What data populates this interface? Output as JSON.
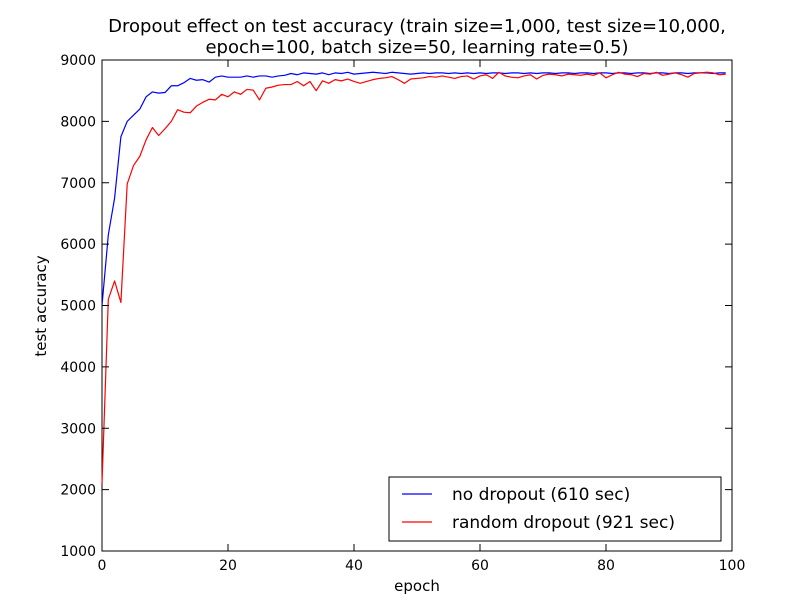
{
  "chart_data": {
    "type": "line",
    "title": "Dropout effect on test accuracy (train size=1,000, test size=10,000,",
    "subtitle": "epoch=100, batch size=50, learning rate=0.5)",
    "xlabel": "epoch",
    "ylabel": "test accuracy",
    "xlim": [
      0,
      100
    ],
    "ylim": [
      1000,
      9000
    ],
    "xticks": [
      0,
      20,
      40,
      60,
      80,
      100
    ],
    "yticks": [
      1000,
      2000,
      3000,
      4000,
      5000,
      6000,
      7000,
      8000,
      9000
    ],
    "grid": false,
    "legend_position": "bottom-right",
    "series": [
      {
        "name": "no dropout (610 sec)",
        "color": "#0000ff",
        "x": [
          0,
          1,
          2,
          3,
          4,
          5,
          6,
          7,
          8,
          9,
          10,
          11,
          12,
          13,
          14,
          15,
          16,
          17,
          18,
          19,
          20,
          21,
          22,
          23,
          24,
          25,
          26,
          27,
          28,
          29,
          30,
          31,
          32,
          33,
          34,
          35,
          36,
          37,
          38,
          39,
          40,
          41,
          42,
          43,
          44,
          45,
          46,
          47,
          48,
          49,
          50,
          51,
          52,
          53,
          54,
          55,
          56,
          57,
          58,
          59,
          60,
          61,
          62,
          63,
          64,
          65,
          66,
          67,
          68,
          69,
          70,
          71,
          72,
          73,
          74,
          75,
          76,
          77,
          78,
          79,
          80,
          81,
          82,
          83,
          84,
          85,
          86,
          87,
          88,
          89,
          90,
          91,
          92,
          93,
          94,
          95,
          96,
          97,
          98,
          99
        ],
        "y": [
          5000,
          6150,
          6750,
          7750,
          8000,
          8100,
          8200,
          8400,
          8480,
          8460,
          8470,
          8580,
          8580,
          8630,
          8700,
          8670,
          8680,
          8640,
          8720,
          8740,
          8720,
          8720,
          8720,
          8740,
          8720,
          8740,
          8740,
          8720,
          8740,
          8750,
          8780,
          8760,
          8790,
          8780,
          8770,
          8790,
          8760,
          8790,
          8780,
          8800,
          8770,
          8780,
          8790,
          8800,
          8790,
          8780,
          8800,
          8790,
          8780,
          8770,
          8780,
          8790,
          8780,
          8790,
          8790,
          8780,
          8790,
          8780,
          8790,
          8780,
          8790,
          8780,
          8790,
          8790,
          8780,
          8790,
          8790,
          8780,
          8790,
          8780,
          8790,
          8790,
          8780,
          8790,
          8790,
          8780,
          8790,
          8790,
          8780,
          8790,
          8790,
          8780,
          8790,
          8790,
          8780,
          8790,
          8790,
          8780,
          8790,
          8790,
          8780,
          8790,
          8790,
          8780,
          8790,
          8790,
          8790,
          8780,
          8790,
          8790
        ]
      },
      {
        "name": "random dropout (921 sec)",
        "color": "#ff0000",
        "x": [
          0,
          1,
          2,
          3,
          4,
          5,
          6,
          7,
          8,
          9,
          10,
          11,
          12,
          13,
          14,
          15,
          16,
          17,
          18,
          19,
          20,
          21,
          22,
          23,
          24,
          25,
          26,
          27,
          28,
          29,
          30,
          31,
          32,
          33,
          34,
          35,
          36,
          37,
          38,
          39,
          40,
          41,
          42,
          43,
          44,
          45,
          46,
          47,
          48,
          49,
          50,
          51,
          52,
          53,
          54,
          55,
          56,
          57,
          58,
          59,
          60,
          61,
          62,
          63,
          64,
          65,
          66,
          67,
          68,
          69,
          70,
          71,
          72,
          73,
          74,
          75,
          76,
          77,
          78,
          79,
          80,
          81,
          82,
          83,
          84,
          85,
          86,
          87,
          88,
          89,
          90,
          91,
          92,
          93,
          94,
          95,
          96,
          97,
          98,
          99
        ],
        "y": [
          2100,
          5100,
          5400,
          5050,
          6980,
          7280,
          7430,
          7700,
          7900,
          7770,
          7880,
          8000,
          8190,
          8150,
          8140,
          8250,
          8310,
          8360,
          8350,
          8440,
          8400,
          8480,
          8440,
          8520,
          8510,
          8350,
          8540,
          8560,
          8590,
          8600,
          8600,
          8650,
          8580,
          8650,
          8500,
          8660,
          8620,
          8680,
          8660,
          8690,
          8650,
          8620,
          8650,
          8680,
          8700,
          8710,
          8730,
          8680,
          8620,
          8690,
          8700,
          8710,
          8730,
          8720,
          8740,
          8720,
          8700,
          8730,
          8740,
          8690,
          8740,
          8760,
          8700,
          8800,
          8740,
          8720,
          8710,
          8740,
          8760,
          8690,
          8750,
          8770,
          8760,
          8740,
          8770,
          8760,
          8750,
          8770,
          8750,
          8790,
          8710,
          8760,
          8800,
          8770,
          8760,
          8730,
          8780,
          8770,
          8800,
          8750,
          8770,
          8790,
          8760,
          8720,
          8780,
          8790,
          8800,
          8790,
          8760,
          8770
        ]
      }
    ]
  }
}
